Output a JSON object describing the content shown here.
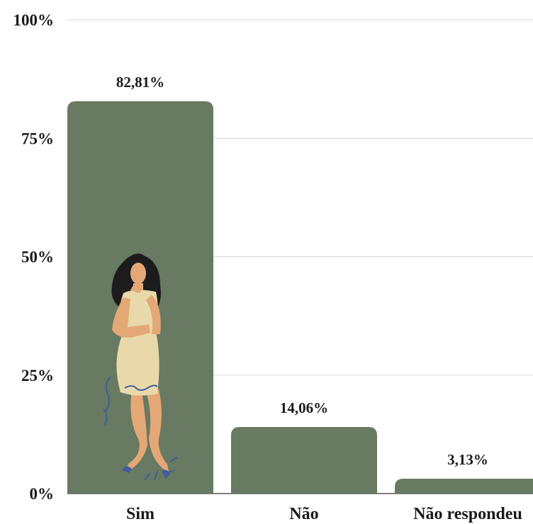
{
  "chart_data": {
    "type": "bar",
    "categories": [
      "Sim",
      "Não",
      "Não respondeu"
    ],
    "values": [
      82.81,
      14.06,
      3.13
    ],
    "data_labels": [
      "82,81%",
      "14,06%",
      "3,13%"
    ],
    "ylim": [
      0,
      100
    ],
    "yticks": [
      0,
      25,
      50,
      75,
      100
    ],
    "ytick_labels": [
      "0%",
      "25%",
      "50%",
      "75%",
      "100%"
    ],
    "grid": true,
    "bar_color": "#687a61",
    "illustration": "woman-thinking"
  }
}
